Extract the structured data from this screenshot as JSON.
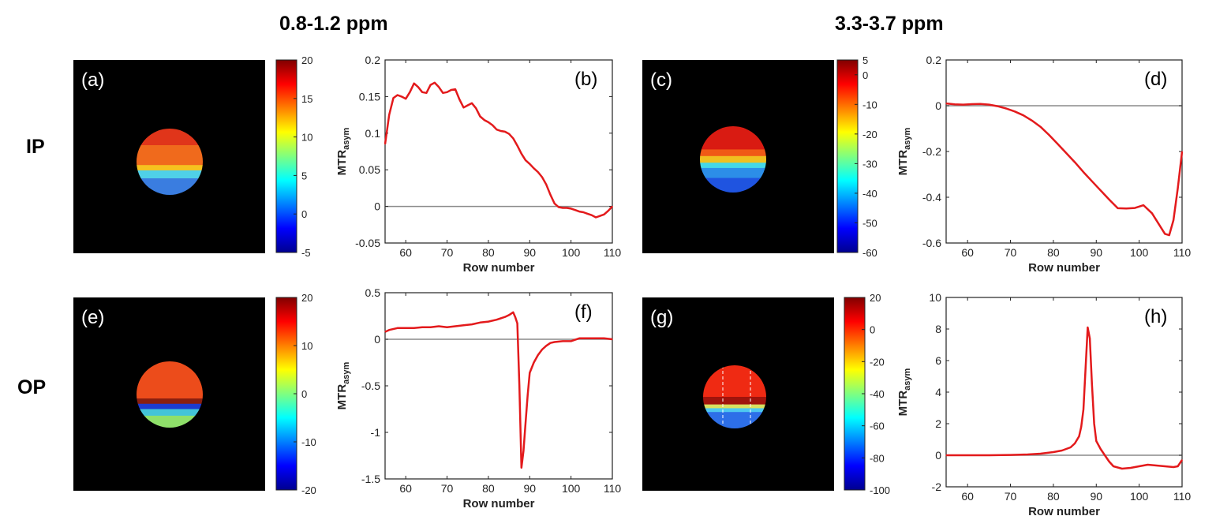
{
  "headers": {
    "left": "0.8-1.2 ppm",
    "right": "3.3-3.7 ppm"
  },
  "row_labels": {
    "top": "IP",
    "bottom": "OP"
  },
  "colorbars": [
    {
      "id": "a",
      "ticks": [
        "20",
        "15",
        "10",
        "5",
        "0",
        "-5"
      ],
      "range": [
        -5,
        20
      ]
    },
    {
      "id": "c",
      "ticks": [
        "5",
        "0",
        "-10",
        "-20",
        "-30",
        "-40",
        "-50",
        "-60"
      ],
      "range": [
        -60,
        5
      ]
    },
    {
      "id": "e",
      "ticks": [
        "20",
        "10",
        "0",
        "-10",
        "-20"
      ],
      "range": [
        -20,
        20
      ]
    },
    {
      "id": "g",
      "ticks": [
        "20",
        "0",
        "-20",
        "-40",
        "-60",
        "-80",
        "-100"
      ],
      "range": [
        -100,
        20
      ]
    }
  ],
  "maps": [
    {
      "id": "a",
      "label": "(a)"
    },
    {
      "id": "c",
      "label": "(c)"
    },
    {
      "id": "e",
      "label": "(e)"
    },
    {
      "id": "g",
      "label": "(g)"
    }
  ],
  "chart_data": [
    {
      "id": "b",
      "type": "line",
      "panel_label": "(b)",
      "xlabel": "Row number",
      "ylabel": "MTR",
      "ylabel_sub": "asym",
      "xlim": [
        55,
        110
      ],
      "ylim": [
        -0.05,
        0.2
      ],
      "xticks": [
        60,
        70,
        80,
        90,
        100,
        110
      ],
      "yticks": [
        -0.05,
        0,
        0.05,
        0.1,
        0.15,
        0.2
      ],
      "ytick_labels": [
        "-0.05",
        "0",
        "0.05",
        "0.1",
        "0.15",
        "0.2"
      ],
      "baseline": 0,
      "color": "#e31a1c",
      "x": [
        55,
        56,
        57,
        58,
        59,
        60,
        61,
        62,
        63,
        64,
        65,
        66,
        67,
        68,
        69,
        70,
        71,
        72,
        73,
        74,
        75,
        76,
        77,
        78,
        79,
        80,
        81,
        82,
        83,
        84,
        85,
        86,
        87,
        88,
        89,
        90,
        91,
        92,
        93,
        94,
        95,
        96,
        97,
        98,
        99,
        100,
        101,
        102,
        103,
        104,
        105,
        106,
        107,
        108,
        109,
        110
      ],
      "y": [
        0.085,
        0.125,
        0.148,
        0.152,
        0.15,
        0.147,
        0.156,
        0.168,
        0.163,
        0.156,
        0.155,
        0.166,
        0.169,
        0.163,
        0.155,
        0.156,
        0.159,
        0.16,
        0.146,
        0.135,
        0.138,
        0.141,
        0.134,
        0.123,
        0.118,
        0.115,
        0.111,
        0.105,
        0.103,
        0.102,
        0.099,
        0.093,
        0.083,
        0.072,
        0.063,
        0.058,
        0.052,
        0.047,
        0.04,
        0.03,
        0.016,
        0.004,
        -0.001,
        -0.002,
        -0.002,
        -0.003,
        -0.005,
        -0.007,
        -0.008,
        -0.01,
        -0.012,
        -0.015,
        -0.013,
        -0.011,
        -0.006,
        0.0
      ]
    },
    {
      "id": "d",
      "type": "line",
      "panel_label": "(d)",
      "xlabel": "Row number",
      "ylabel": "MTR",
      "ylabel_sub": "asym",
      "xlim": [
        55,
        110
      ],
      "ylim": [
        -0.6,
        0.2
      ],
      "xticks": [
        60,
        70,
        80,
        90,
        100,
        110
      ],
      "yticks": [
        -0.6,
        -0.4,
        -0.2,
        0,
        0.2
      ],
      "ytick_labels": [
        "-0.6",
        "-0.4",
        "-0.2",
        "0",
        "0.2"
      ],
      "baseline": 0,
      "color": "#e31a1c",
      "x": [
        55,
        57,
        59,
        61,
        63,
        65,
        67,
        69,
        71,
        73,
        75,
        77,
        79,
        81,
        83,
        85,
        87,
        89,
        91,
        93,
        95,
        97,
        99,
        101,
        103,
        105,
        106,
        107,
        108,
        109,
        110
      ],
      "y": [
        0.01,
        0.006,
        0.005,
        0.007,
        0.008,
        0.005,
        -0.002,
        -0.012,
        -0.025,
        -0.042,
        -0.065,
        -0.092,
        -0.128,
        -0.167,
        -0.207,
        -0.247,
        -0.29,
        -0.33,
        -0.37,
        -0.41,
        -0.448,
        -0.449,
        -0.447,
        -0.435,
        -0.47,
        -0.53,
        -0.56,
        -0.566,
        -0.5,
        -0.36,
        -0.2
      ]
    },
    {
      "id": "f",
      "type": "line",
      "panel_label": "(f)",
      "xlabel": "Row number",
      "ylabel": "MTR",
      "ylabel_sub": "asym",
      "xlim": [
        55,
        110
      ],
      "ylim": [
        -1.5,
        0.5
      ],
      "xticks": [
        60,
        70,
        80,
        90,
        100,
        110
      ],
      "yticks": [
        -1.5,
        -1,
        -0.5,
        0,
        0.5
      ],
      "ytick_labels": [
        "-1.5",
        "-1",
        "-0.5",
        "0",
        "0.5"
      ],
      "baseline": 0,
      "color": "#e31a1c",
      "x": [
        55,
        56,
        58,
        60,
        62,
        64,
        66,
        68,
        70,
        72,
        74,
        76,
        78,
        80,
        82,
        84,
        85,
        86,
        86.5,
        87,
        87.5,
        88,
        88.5,
        89,
        89.5,
        90,
        91,
        92,
        93,
        94,
        95,
        96,
        98,
        100,
        102,
        104,
        106,
        108,
        110
      ],
      "y": [
        0.08,
        0.1,
        0.12,
        0.12,
        0.12,
        0.13,
        0.13,
        0.14,
        0.13,
        0.14,
        0.15,
        0.16,
        0.18,
        0.19,
        0.21,
        0.24,
        0.26,
        0.29,
        0.24,
        0.17,
        -0.5,
        -1.38,
        -1.2,
        -0.9,
        -0.6,
        -0.36,
        -0.25,
        -0.17,
        -0.11,
        -0.07,
        -0.04,
        -0.03,
        -0.02,
        -0.02,
        0.01,
        0.01,
        0.01,
        0.01,
        0.0
      ]
    },
    {
      "id": "h",
      "type": "line",
      "panel_label": "(h)",
      "xlabel": "Row number",
      "ylabel": "MTR",
      "ylabel_sub": "asym",
      "xlim": [
        55,
        110
      ],
      "ylim": [
        -2,
        10
      ],
      "xticks": [
        60,
        70,
        80,
        90,
        100,
        110
      ],
      "yticks": [
        -2,
        0,
        2,
        4,
        6,
        8,
        10
      ],
      "ytick_labels": [
        "-2",
        "0",
        "2",
        "4",
        "6",
        "8",
        "10"
      ],
      "baseline": 0,
      "color": "#e31a1c",
      "x": [
        55,
        60,
        65,
        70,
        74,
        77,
        80,
        82,
        84,
        85,
        86,
        86.5,
        87,
        87.5,
        88,
        88.5,
        89,
        89.5,
        90,
        91,
        92,
        93,
        94,
        96,
        98,
        100,
        102,
        104,
        106,
        108,
        109,
        110
      ],
      "y": [
        0.0,
        0.0,
        0.0,
        0.02,
        0.05,
        0.1,
        0.2,
        0.3,
        0.5,
        0.75,
        1.2,
        1.8,
        2.9,
        5.5,
        8.1,
        7.4,
        4.5,
        2.0,
        0.9,
        0.4,
        0.0,
        -0.4,
        -0.7,
        -0.85,
        -0.8,
        -0.7,
        -0.6,
        -0.65,
        -0.7,
        -0.75,
        -0.7,
        -0.3
      ]
    }
  ]
}
